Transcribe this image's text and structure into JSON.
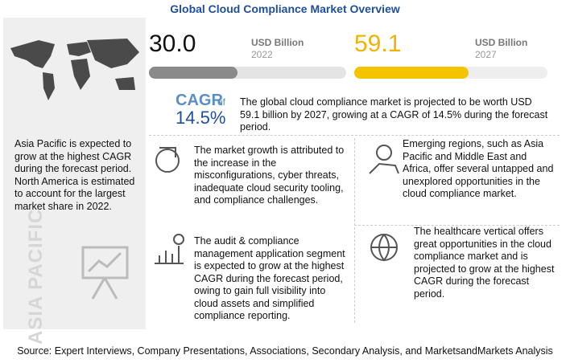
{
  "header": {
    "title": "Global Cloud Compliance Market Overview"
  },
  "stats": [
    {
      "value": "30.0",
      "unit": "USD Billion",
      "year": "2022"
    },
    {
      "value": "59.1",
      "unit": "USD Billion",
      "year": "2027"
    }
  ],
  "cagr": {
    "label": "CAGR",
    "of": "of",
    "value": "14.5%",
    "text": "The global cloud compliance market is projected to be worth USD 59.1 billion by 2027, growing at a CAGR of 14.5% during the forecast period."
  },
  "left_panel": {
    "text": "Asia Pacific is expected to grow at the highest CAGR during the forecast period. North America is estimated to account for the largest market share in 2022.",
    "region": "ASIA PACIFIC"
  },
  "points": [
    "The market growth is attributed to the increase in the misconfigurations, cyber threats, inadequate cloud security tooling, and compliance challenges.",
    "The audit & compliance management application segment is expected to grow at the highest CAGR during the forecast period, owing to gain full visibility into cloud assets and simplified compliance reporting.",
    "Emerging regions, such as Asia Pacific and Middle East and Africa, offer several untapped and unexplored opportunities in the cloud compliance market.",
    "The healthcare vertical offers great opportunities in the cloud compliance market and is projected to grow at the highest CAGR during the forecast period."
  ],
  "footer": {
    "source": "Source: Expert Interviews, Company Presentations, Associations, Secondary Analysis, and MarketsandMarkets Analysis"
  }
}
